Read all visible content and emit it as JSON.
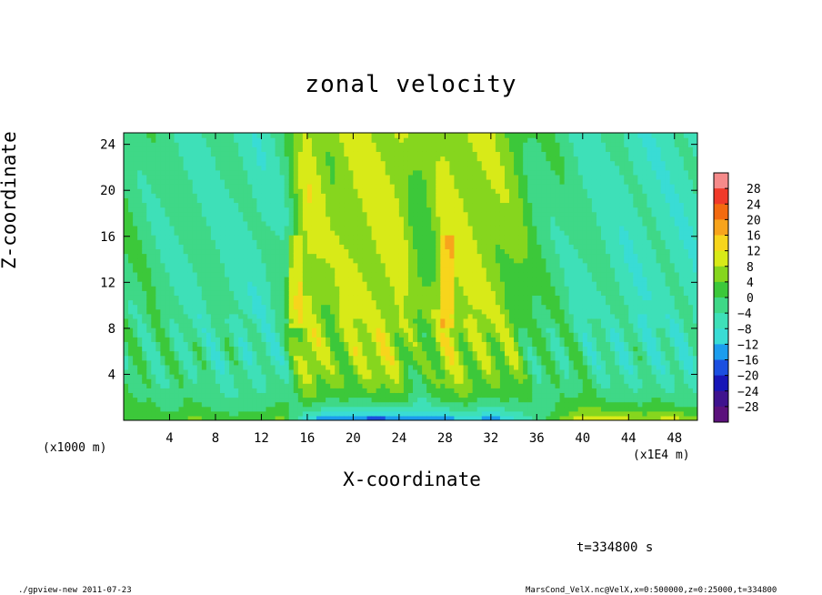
{
  "page": {
    "timestamp": "t=334800 s",
    "footer_left": "./gpview-new   2011-07-23",
    "footer_right": "MarsCond_VelX.nc@VelX,x=0:500000,z=0:25000,t=334800"
  },
  "chart_data": {
    "type": "heatmap",
    "title": "zonal velocity",
    "xlabel": "X-coordinate",
    "ylabel": "Z-coordinate",
    "x_unit_left": "(x1000 m)",
    "x_unit_right": "(x1E4 m)",
    "xlim": [
      0,
      50
    ],
    "ylim": [
      0,
      25
    ],
    "x_ticks": [
      4,
      8,
      12,
      16,
      20,
      24,
      28,
      32,
      36,
      40,
      44,
      48
    ],
    "y_ticks": [
      4,
      8,
      12,
      16,
      20,
      24
    ],
    "colorbar": {
      "levels": [
        28,
        24,
        20,
        16,
        12,
        8,
        4,
        0,
        -4,
        -8,
        -12,
        -16,
        -20,
        -24,
        -28
      ],
      "colors": [
        "#f58a8a",
        "#f03a2a",
        "#f36a10",
        "#f8a41c",
        "#f7d51c",
        "#d8ea18",
        "#86d61e",
        "#3cc83a",
        "#3fd887",
        "#3ee0b8",
        "#39dcd5",
        "#1c9dee",
        "#1b4fe0",
        "#1716b7",
        "#3f138e",
        "#5b117c"
      ]
    },
    "grid": false,
    "legend": "colorbar right",
    "description_of_field": {
      "x_columns": [
        0,
        2,
        4,
        6,
        8,
        10,
        12,
        14,
        16,
        18,
        20,
        22,
        24,
        26,
        28,
        30,
        32,
        34,
        36,
        38,
        40,
        42,
        44,
        46,
        48,
        50
      ],
      "upper_layer_values": [
        -1,
        -2,
        -3,
        -4,
        -4,
        -5,
        -6,
        -3,
        10,
        6,
        8,
        9,
        9,
        2,
        9,
        8,
        7,
        5,
        -1,
        -2,
        -4,
        -5,
        -6,
        -6,
        -6,
        -6
      ],
      "surface_values": [
        2,
        4,
        3,
        5,
        2,
        4,
        3,
        5,
        -12,
        -18,
        -16,
        -20,
        -18,
        -15,
        -16,
        -14,
        -15,
        -10,
        -4,
        6,
        12,
        10,
        11,
        8,
        10,
        9
      ]
    }
  }
}
